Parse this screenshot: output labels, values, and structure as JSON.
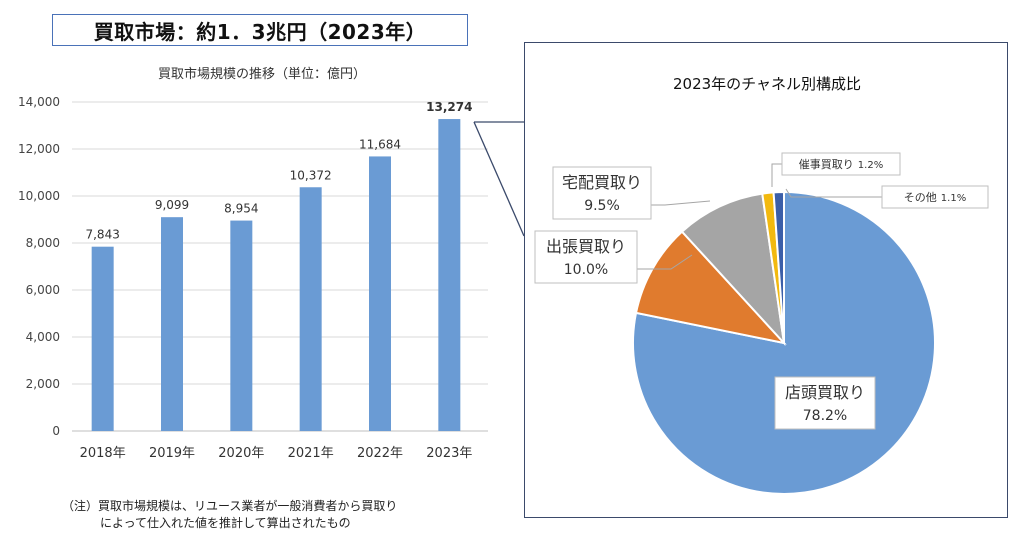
{
  "headline": "買取市場：約1．3兆円（2023年）",
  "footnote": {
    "line1": "（注）買取市場規模は、リユース業者が一般消費者から買取り",
    "line2": "によって仕入れた値を推計して算出されたもの"
  },
  "chart_data": [
    {
      "type": "bar",
      "title": "買取市場規模の推移（単位：億円）",
      "categories": [
        "2018年",
        "2019年",
        "2020年",
        "2021年",
        "2022年",
        "2023年"
      ],
      "values": [
        7843,
        9099,
        8954,
        10372,
        11684,
        13274
      ],
      "value_labels": [
        "7,843",
        "9,099",
        "8,954",
        "10,372",
        "11,684",
        "13,274"
      ],
      "bold_last_label": true,
      "ylim": [
        0,
        14000
      ],
      "yticks": [
        0,
        2000,
        4000,
        6000,
        8000,
        10000,
        12000,
        14000
      ],
      "ytick_labels": [
        "0",
        "2,000",
        "4,000",
        "6,000",
        "8,000",
        "10,000",
        "12,000",
        "14,000"
      ],
      "grid": true,
      "bar_color": "#6a9bd4"
    },
    {
      "type": "pie",
      "title": "2023年のチャネル別構成比",
      "slices": [
        {
          "label": "店頭買取り",
          "value": 78.2,
          "value_label": "78.2%",
          "color": "#6a9bd4"
        },
        {
          "label": "出張買取り",
          "value": 10.0,
          "value_label": "10.0%",
          "color": "#e07b2e"
        },
        {
          "label": "宅配買取り",
          "value": 9.5,
          "value_label": "9.5%",
          "color": "#a5a5a5"
        },
        {
          "label": "催事買取り",
          "value": 1.2,
          "value_label": "1.2%",
          "color": "#f2b90f"
        },
        {
          "label": "その他",
          "value": 1.1,
          "value_label": "1.1%",
          "color": "#3c5fa8"
        }
      ]
    }
  ]
}
